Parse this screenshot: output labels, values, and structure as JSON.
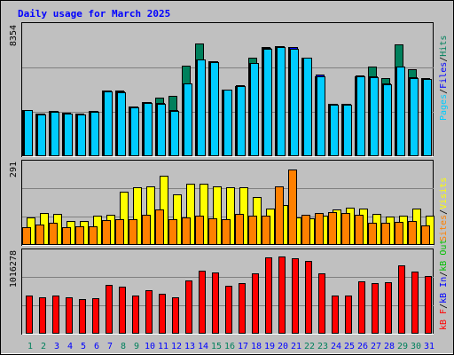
{
  "chart_data": [
    {
      "type": "bar",
      "title": "Daily usage for March 2025",
      "categories": [
        "1",
        "2",
        "3",
        "4",
        "5",
        "6",
        "7",
        "8",
        "9",
        "10",
        "11",
        "12",
        "13",
        "14",
        "15",
        "16",
        "17",
        "18",
        "19",
        "20",
        "21",
        "22",
        "23",
        "24",
        "25",
        "26",
        "27",
        "28",
        "29",
        "30",
        "31"
      ],
      "weekend_days": [
        "1",
        "2",
        "8",
        "9",
        "15",
        "16",
        "22",
        "23",
        "29",
        "30"
      ],
      "y_tick_label": "8354",
      "y_tick_value": 8354,
      "ylim": [
        0,
        9880
      ],
      "series": [
        {
          "name": "Hits",
          "color": "#00805c",
          "values": [
            3450,
            3150,
            3350,
            3200,
            3130,
            3370,
            4880,
            4850,
            3710,
            4030,
            4380,
            4500,
            6710,
            8340,
            7080,
            4950,
            5200,
            7310,
            8090,
            8180,
            8110,
            7330,
            5950,
            3880,
            3870,
            5960,
            6620,
            5770,
            8280,
            6440,
            5810
          ]
        },
        {
          "name": "Files",
          "color": "#0000ff",
          "values": [
            3450,
            3140,
            3340,
            3180,
            3120,
            3360,
            4870,
            4790,
            3680,
            4020,
            3920,
            3410,
            5400,
            7210,
            7040,
            4960,
            5240,
            6940,
            8050,
            8160,
            8070,
            7330,
            6030,
            3880,
            3860,
            5980,
            5910,
            5400,
            6680,
            5840,
            5730
          ]
        },
        {
          "name": "Pages",
          "color": "#00ccff",
          "values": [
            3400,
            3120,
            3300,
            3150,
            3100,
            3320,
            4800,
            4760,
            3620,
            3980,
            3870,
            3350,
            5390,
            7160,
            7000,
            4930,
            5200,
            6910,
            7980,
            8100,
            7980,
            7310,
            5960,
            3850,
            3830,
            5940,
            5850,
            5350,
            6620,
            5780,
            5700
          ]
        }
      ]
    },
    {
      "type": "bar",
      "y_tick_label": "291",
      "y_tick_value": 291,
      "ylim": [
        0,
        362
      ],
      "series": [
        {
          "name": "Visits",
          "color": "#ffff00",
          "values": [
            117,
            136,
            133,
            103,
            104,
            124,
            129,
            227,
            246,
            253,
            296,
            219,
            263,
            264,
            250,
            249,
            248,
            206,
            158,
            173,
            120,
            114,
            125,
            151,
            161,
            157,
            134,
            122,
            124,
            158,
            127
          ]
        },
        {
          "name": "Sites",
          "color": "#ff8000",
          "values": [
            76,
            86,
            94,
            75,
            80,
            79,
            105,
            109,
            112,
            130,
            154,
            109,
            117,
            124,
            115,
            111,
            132,
            126,
            126,
            250,
            322,
            130,
            138,
            142,
            137,
            129,
            97,
            94,
            98,
            103,
            83
          ]
        }
      ]
    },
    {
      "type": "bar",
      "y_tick_label": "1016278",
      "y_tick_value": 1016278,
      "ylim": [
        0,
        1555000
      ],
      "series": [
        {
          "name": "KB In",
          "color": "#00c000",
          "values": [
            0,
            0,
            0,
            0,
            0,
            0,
            0,
            0,
            0,
            0,
            0,
            0,
            0,
            0,
            0,
            0,
            0,
            0,
            0,
            0,
            0,
            0,
            0,
            0,
            0,
            0,
            0,
            0,
            0,
            0,
            0
          ]
        },
        {
          "name": "KB Out",
          "color": "#00c0c0",
          "values": [
            0,
            0,
            0,
            0,
            0,
            0,
            0,
            0,
            0,
            0,
            0,
            0,
            0,
            0,
            0,
            0,
            0,
            0,
            0,
            0,
            0,
            0,
            0,
            0,
            0,
            0,
            0,
            0,
            0,
            0,
            0
          ]
        },
        {
          "name": "KB F",
          "color": "#ff0000",
          "values": [
            705000,
            670000,
            705000,
            670000,
            635000,
            655000,
            905000,
            870000,
            705000,
            800000,
            740000,
            670000,
            975000,
            1160000,
            1130000,
            880000,
            935000,
            1120000,
            1400000,
            1420000,
            1395000,
            1340000,
            1110000,
            710000,
            710000,
            965000,
            935000,
            955000,
            1255000,
            1140000,
            1065000
          ]
        }
      ]
    }
  ],
  "legend_top": {
    "pages": "Pages",
    "files": "Files",
    "hits": "Hits",
    "pages_color": "#00ccff",
    "files_color": "#0000ff",
    "hits_color": "#00805c"
  },
  "legend_mid": {
    "sites": "Sites",
    "visits": "Visits",
    "sites_color": "#ff8000",
    "visits_color": "#ffff00"
  },
  "legend_bot": {
    "kbf": "kB F",
    "kbin": "kB In",
    "kbout": "kB Out",
    "kbf_color": "#ff0000",
    "kbin_color": "#0000ff",
    "kbout_color": "#00c000"
  },
  "separator": "/",
  "colors": {
    "background": "#c0c0c0",
    "plot_bg": "#c0c0c0",
    "title": "#0000ff",
    "weekday_label": "#0000ff",
    "weekend_label": "#00805c",
    "grid": "#808080"
  }
}
